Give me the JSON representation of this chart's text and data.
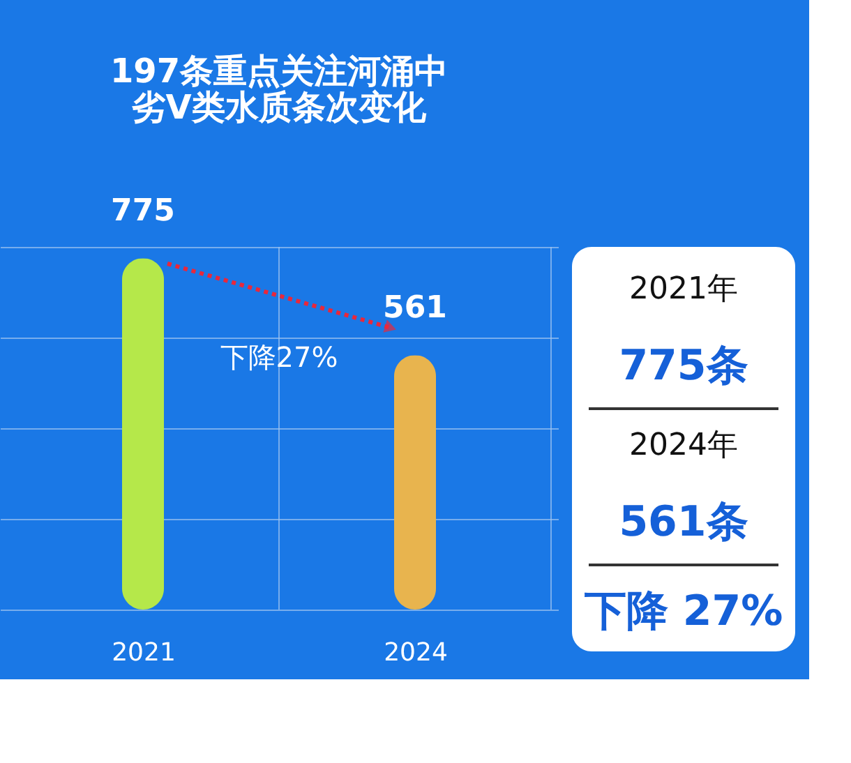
{
  "chart_data": [
    {
      "type": "bar",
      "title": [
        "197条重点关注河涌中",
        "劣V类水质条次变化"
      ],
      "categories": [
        "2021",
        "2024"
      ],
      "values": [
        775,
        561
      ],
      "colors": [
        "#b5e84a",
        "#e8b44e"
      ],
      "data_labels": true,
      "ylim": [
        0,
        800
      ],
      "yticks": [
        {
          "value": 0,
          "label": null
        },
        {
          "value": 200,
          "label": null
        },
        {
          "value": 400,
          "label": null
        },
        {
          "value": 600,
          "label": null
        },
        {
          "value": 800,
          "label": null
        }
      ],
      "tick_labels": "x",
      "grid": true,
      "annotations": [
        "下降27%"
      ]
    },
    {
      "type": "other",
      "annotations": [
        "2021年",
        "775条",
        "2024年",
        "561条",
        "下降 27%"
      ]
    }
  ]
}
